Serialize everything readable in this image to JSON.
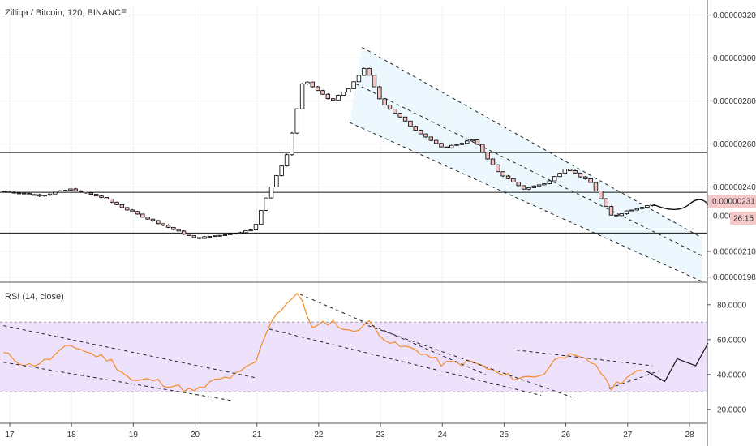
{
  "chart_title": "Zilliqa / Bitcoin, 120, BINANCE",
  "rsi_title": "RSI (14, close)",
  "colors": {
    "bull": "#ffffff",
    "bear": "#f2c3c3",
    "wick": "#000000",
    "rsi_line": "#f28c28",
    "rsi_band": "#eadcfb",
    "channel_fill": "#e7f6fc",
    "price_badge": "#f6c9c9"
  },
  "price_labels": [
    "0.00000320",
    "0.00000300",
    "0.00000280",
    "0.00000260",
    "0.00000240",
    "0.00000231",
    "0.000",
    "0.00000210",
    "0.00000198"
  ],
  "rsi_labels": [
    "80.0000",
    "60.0000",
    "40.0000",
    "20.0000"
  ],
  "badges": {
    "price": "0.00000231",
    "timer": "26:15"
  },
  "x_labels": [
    "17",
    "18",
    "19",
    "20",
    "21",
    "22",
    "23",
    "24",
    "25",
    "26",
    "27",
    "28"
  ],
  "chart_data": {
    "type": "candlestick",
    "price_axis": {
      "ylim": [
        1.96e-06,
        3.24e-06
      ],
      "ticks": [
        3.2e-06,
        3e-06,
        2.8e-06,
        2.6e-06,
        2.4e-06,
        2.1e-06,
        1.98e-06
      ]
    },
    "horizontal_levels": [
      2.56e-06,
      2.375e-06,
      2.185e-06
    ],
    "days": [
      "17",
      "18",
      "19",
      "20",
      "21",
      "22",
      "23",
      "24",
      "25",
      "26",
      "27",
      "28"
    ],
    "price_anchors": [
      [
        16.9,
        2.38e-06
      ],
      [
        17.5,
        2.36e-06
      ],
      [
        18.0,
        2.39e-06
      ],
      [
        18.5,
        2.35e-06
      ],
      [
        19.0,
        2.28e-06
      ],
      [
        19.5,
        2.22e-06
      ],
      [
        20.0,
        2.16e-06
      ],
      [
        20.5,
        2.18e-06
      ],
      [
        20.95,
        2.2e-06
      ],
      [
        21.1,
        2.32e-06
      ],
      [
        21.5,
        2.56e-06
      ],
      [
        21.75,
        2.9e-06
      ],
      [
        22.2,
        2.8e-06
      ],
      [
        22.5,
        2.86e-06
      ],
      [
        22.75,
        2.96e-06
      ],
      [
        23.0,
        2.8e-06
      ],
      [
        23.5,
        2.68e-06
      ],
      [
        24.0,
        2.58e-06
      ],
      [
        24.5,
        2.62e-06
      ],
      [
        24.9,
        2.47e-06
      ],
      [
        25.3,
        2.39e-06
      ],
      [
        25.7,
        2.42e-06
      ],
      [
        26.0,
        2.49e-06
      ],
      [
        26.4,
        2.42e-06
      ],
      [
        26.75,
        2.26e-06
      ],
      [
        27.0,
        2.29e-06
      ],
      [
        27.4,
        2.32e-06
      ]
    ],
    "channel_upper": [
      [
        22.7,
        3.05e-06
      ],
      [
        27.6,
        2.26e-06
      ]
    ],
    "channel_lower": [
      [
        22.5,
        2.7e-06
      ],
      [
        28.2,
        1.96e-06
      ]
    ],
    "channel_mid": [
      [
        22.6,
        2.88e-06
      ],
      [
        28.2,
        2.08e-06
      ]
    ],
    "projection": [
      [
        27.4,
        2.32e-06
      ],
      [
        27.8,
        2.3e-06
      ],
      [
        28.2,
        2.34e-06
      ],
      [
        28.35,
        2.3e-06
      ]
    ],
    "rsi": {
      "ylim": [
        12,
        92
      ],
      "band": [
        30,
        70
      ],
      "ticks": [
        80,
        60,
        40,
        20
      ],
      "values": [
        [
          16.9,
          52
        ],
        [
          17.3,
          45
        ],
        [
          17.6,
          48
        ],
        [
          18.0,
          57
        ],
        [
          18.3,
          52
        ],
        [
          18.6,
          49
        ],
        [
          19.0,
          36
        ],
        [
          19.3,
          37
        ],
        [
          19.6,
          34
        ],
        [
          20.0,
          30
        ],
        [
          20.3,
          36
        ],
        [
          20.7,
          40
        ],
        [
          21.0,
          48
        ],
        [
          21.2,
          70
        ],
        [
          21.5,
          82
        ],
        [
          21.7,
          86
        ],
        [
          21.9,
          66
        ],
        [
          22.2,
          71
        ],
        [
          22.5,
          64
        ],
        [
          22.8,
          70
        ],
        [
          23.2,
          57
        ],
        [
          23.6,
          54
        ],
        [
          24.0,
          46
        ],
        [
          24.5,
          47
        ],
        [
          25.0,
          39
        ],
        [
          25.3,
          38
        ],
        [
          25.7,
          41
        ],
        [
          25.85,
          52
        ],
        [
          26.2,
          49
        ],
        [
          26.5,
          46
        ],
        [
          26.7,
          32
        ],
        [
          27.0,
          39
        ],
        [
          27.3,
          42
        ]
      ],
      "trend_lines": [
        [
          [
            16.9,
            68
          ],
          [
            21.0,
            38
          ]
        ],
        [
          [
            16.9,
            47
          ],
          [
            20.6,
            25
          ]
        ],
        [
          [
            21.7,
            86
          ],
          [
            24.7,
            40
          ]
        ],
        [
          [
            21.2,
            66
          ],
          [
            25.6,
            28
          ]
        ],
        [
          [
            22.8,
            68
          ],
          [
            26.1,
            27
          ]
        ],
        [
          [
            25.2,
            54
          ],
          [
            27.4,
            45
          ]
        ],
        [
          [
            26.7,
            32
          ],
          [
            27.5,
            42
          ]
        ]
      ],
      "projection": [
        [
          27.3,
          42
        ],
        [
          27.6,
          36
        ],
        [
          27.8,
          49
        ],
        [
          28.1,
          45
        ],
        [
          28.3,
          58
        ]
      ]
    }
  }
}
